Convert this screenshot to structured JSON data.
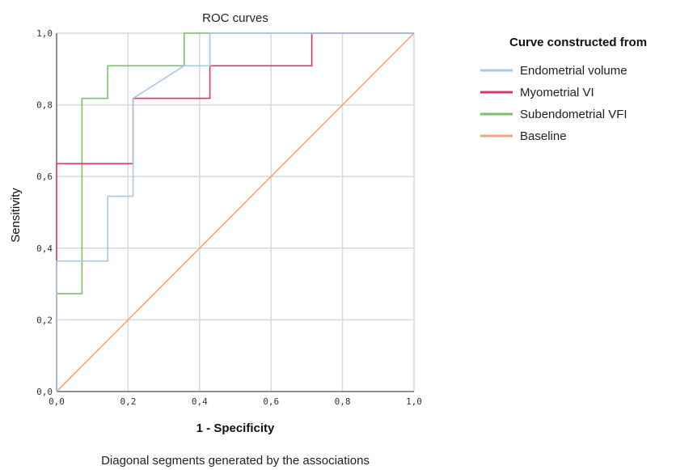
{
  "chart_data": {
    "type": "line",
    "title": "ROC curves",
    "xlabel": "1 - Specificity",
    "ylabel": "Sensitivity",
    "footnote": "Diagonal segments generated by the associations",
    "xlim": [
      0,
      1
    ],
    "ylim": [
      0,
      1
    ],
    "x_ticks": [
      "0,0",
      "0,2",
      "0,4",
      "0,6",
      "0,8",
      "1,0"
    ],
    "y_ticks": [
      "0,0",
      "0,2",
      "0,4",
      "0,6",
      "0,8",
      "1,0"
    ],
    "grid": true,
    "legend": {
      "title": "Curve constructed from",
      "position": "right"
    },
    "series": [
      {
        "name": "Endometrial volume",
        "color": "#a7c8ee",
        "points": [
          [
            0,
            0
          ],
          [
            0,
            0.364
          ],
          [
            0.143,
            0.364
          ],
          [
            0.143,
            0.545
          ],
          [
            0.214,
            0.545
          ],
          [
            0.214,
            0.818
          ],
          [
            0.357,
            0.909
          ],
          [
            0.429,
            0.909
          ],
          [
            0.429,
            1.0
          ],
          [
            1.0,
            1.0
          ]
        ]
      },
      {
        "name": "Myometrial VI",
        "color": "#d6386a",
        "points": [
          [
            0,
            0
          ],
          [
            0,
            0.636
          ],
          [
            0.214,
            0.636
          ],
          [
            0.214,
            0.818
          ],
          [
            0.429,
            0.818
          ],
          [
            0.429,
            0.909
          ],
          [
            0.714,
            0.909
          ],
          [
            0.714,
            1.0
          ],
          [
            1.0,
            1.0
          ]
        ]
      },
      {
        "name": "Subendometrial VFI",
        "color": "#7dbf6b",
        "points": [
          [
            0,
            0
          ],
          [
            0,
            0.273
          ],
          [
            0.071,
            0.273
          ],
          [
            0.071,
            0.818
          ],
          [
            0.143,
            0.818
          ],
          [
            0.143,
            0.909
          ],
          [
            0.357,
            0.909
          ],
          [
            0.357,
            1.0
          ],
          [
            1.0,
            1.0
          ]
        ]
      },
      {
        "name": "Baseline",
        "color": "#f6a57d",
        "points": [
          [
            0,
            0
          ],
          [
            1,
            1
          ]
        ]
      }
    ]
  }
}
